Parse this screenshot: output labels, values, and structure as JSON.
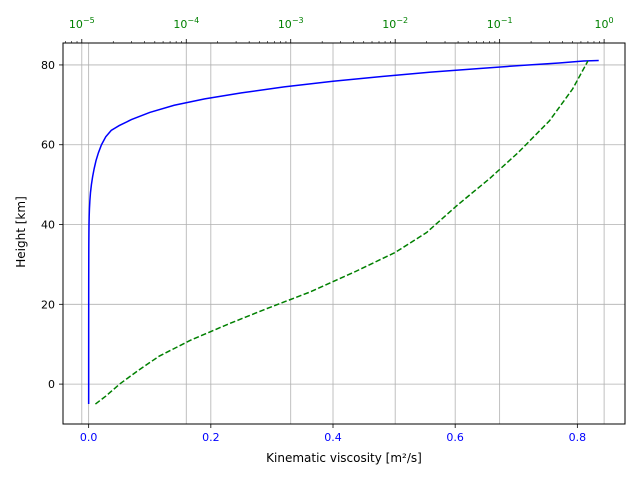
{
  "chart_data": {
    "type": "line",
    "title": "",
    "xlabel": "Kinematic viscosity [m²/s]",
    "ylabel": "Height [km]",
    "xlim": [
      -0.042,
      0.878
    ],
    "ylim": [
      -10,
      85.5
    ],
    "xlim_top_log10": [
      -5.18,
      0.2
    ],
    "grid": true,
    "x_ticks": [
      {
        "value": 0.0,
        "label": "0.0"
      },
      {
        "value": 0.2,
        "label": "0.2"
      },
      {
        "value": 0.4,
        "label": "0.4"
      },
      {
        "value": 0.6,
        "label": "0.6"
      },
      {
        "value": 0.8,
        "label": "0.8"
      }
    ],
    "y_ticks": [
      {
        "value": 0,
        "label": "0"
      },
      {
        "value": 20,
        "label": "20"
      },
      {
        "value": 40,
        "label": "40"
      },
      {
        "value": 60,
        "label": "60"
      },
      {
        "value": 80,
        "label": "80"
      }
    ],
    "top_ticks": [
      {
        "exp": -5,
        "base": "10",
        "sup": "−5"
      },
      {
        "exp": -4,
        "base": "10",
        "sup": "−4"
      },
      {
        "exp": -3,
        "base": "10",
        "sup": "−3"
      },
      {
        "exp": -2,
        "base": "10",
        "sup": "−2"
      },
      {
        "exp": -1,
        "base": "10",
        "sup": "−1"
      },
      {
        "exp": 0,
        "base": "10",
        "sup": "0"
      }
    ],
    "series": [
      {
        "axis": "bottom-linear",
        "style": "solid",
        "color": "#0000ff",
        "x": [
          1.35e-05,
          1.55e-05,
          1.85e-05,
          2.2e-05,
          2.7e-05,
          3.4e-05,
          4.25e-05,
          5.4e-05,
          6.9e-05,
          8.8e-05,
          0.00011,
          0.00014,
          0.00018,
          0.00024,
          0.00032,
          0.00043,
          0.00058,
          0.00085,
          0.0013,
          0.002,
          0.003,
          0.0045,
          0.0065,
          0.009,
          0.012,
          0.016,
          0.021,
          0.028,
          0.037,
          0.05,
          0.07,
          0.1,
          0.14,
          0.19,
          0.25,
          0.32,
          0.4,
          0.48,
          0.56,
          0.64,
          0.71,
          0.77,
          0.81,
          0.835
        ],
        "y": [
          -5,
          -2,
          1,
          4,
          7,
          10,
          13,
          16,
          19,
          22,
          25,
          28,
          31,
          34,
          36,
          38,
          40,
          42,
          44,
          46,
          48,
          50,
          52,
          54,
          56,
          58,
          60,
          62,
          63.6,
          64.8,
          66.3,
          68.1,
          69.9,
          71.5,
          73,
          74.5,
          75.9,
          77.1,
          78.2,
          79.1,
          79.9,
          80.5,
          81,
          81.1
        ]
      },
      {
        "axis": "top-log",
        "style": "dashed",
        "color": "#008000",
        "x": [
          1.35e-05,
          1.7e-05,
          2.3e-05,
          3.5e-05,
          5.5e-05,
          0.00011,
          0.00025,
          0.0006,
          0.0015,
          0.004,
          0.01,
          0.02,
          0.04,
          0.08,
          0.15,
          0.3,
          0.5,
          0.7
        ],
        "y": [
          -5,
          -3,
          0,
          3.5,
          7,
          11,
          15,
          19,
          23,
          28,
          33,
          38,
          45,
          51.5,
          58,
          66,
          74,
          81
        ]
      }
    ]
  }
}
